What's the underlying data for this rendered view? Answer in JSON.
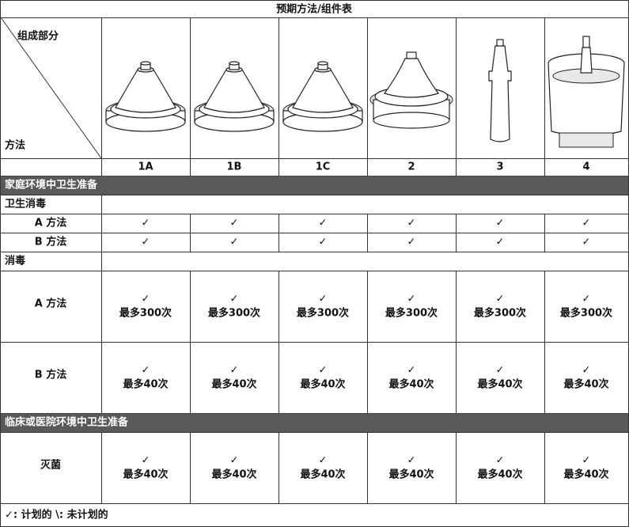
{
  "title": "预期方法/组件表",
  "corner": {
    "top": "组成部分",
    "bottom": "方法"
  },
  "columns": [
    "1A",
    "1B",
    "1C",
    "2",
    "3",
    "4"
  ],
  "sections": [
    {
      "title": "家庭环境中卫生准备",
      "groups": [
        {
          "title": "卫生消毒",
          "rows": [
            {
              "label": "A 方法",
              "cells": [
                {
                  "mark": "✓"
                },
                {
                  "mark": "✓"
                },
                {
                  "mark": "✓"
                },
                {
                  "mark": "✓"
                },
                {
                  "mark": "✓"
                },
                {
                  "mark": "✓"
                }
              ]
            },
            {
              "label": "B 方法",
              "cells": [
                {
                  "mark": "✓"
                },
                {
                  "mark": "✓"
                },
                {
                  "mark": "✓"
                },
                {
                  "mark": "✓"
                },
                {
                  "mark": "✓"
                },
                {
                  "mark": "✓"
                }
              ]
            }
          ]
        },
        {
          "title": "消毒",
          "rows": [
            {
              "label": "A 方法",
              "cells": [
                {
                  "mark": "✓",
                  "note": "最多300次"
                },
                {
                  "mark": "✓",
                  "note": "最多300次"
                },
                {
                  "mark": "✓",
                  "note": "最多300次"
                },
                {
                  "mark": "✓",
                  "note": "最多300次"
                },
                {
                  "mark": "✓",
                  "note": "最多300次"
                },
                {
                  "mark": "✓",
                  "note": "最多300次"
                }
              ]
            },
            {
              "label": "B 方法",
              "cells": [
                {
                  "mark": "✓",
                  "note": "最多40次"
                },
                {
                  "mark": "✓",
                  "note": "最多40次"
                },
                {
                  "mark": "✓",
                  "note": "最多40次"
                },
                {
                  "mark": "✓",
                  "note": "最多40次"
                },
                {
                  "mark": "✓",
                  "note": "最多40次"
                },
                {
                  "mark": "✓",
                  "note": "最多40次"
                }
              ]
            }
          ]
        }
      ]
    },
    {
      "title": "临床或医院环境中卫生准备",
      "groups": [
        {
          "rows": [
            {
              "label": "灭菌",
              "cells": [
                {
                  "mark": "✓",
                  "note": "最多40次"
                },
                {
                  "mark": "✓",
                  "note": "最多40次"
                },
                {
                  "mark": "✓",
                  "note": "最多40次"
                },
                {
                  "mark": "✓",
                  "note": "最多40次"
                },
                {
                  "mark": "✓",
                  "note": "最多40次"
                },
                {
                  "mark": "✓",
                  "note": "最多40次"
                }
              ]
            }
          ]
        }
      ]
    }
  ],
  "footer": "✓: 计划的 \\: 未计划的"
}
